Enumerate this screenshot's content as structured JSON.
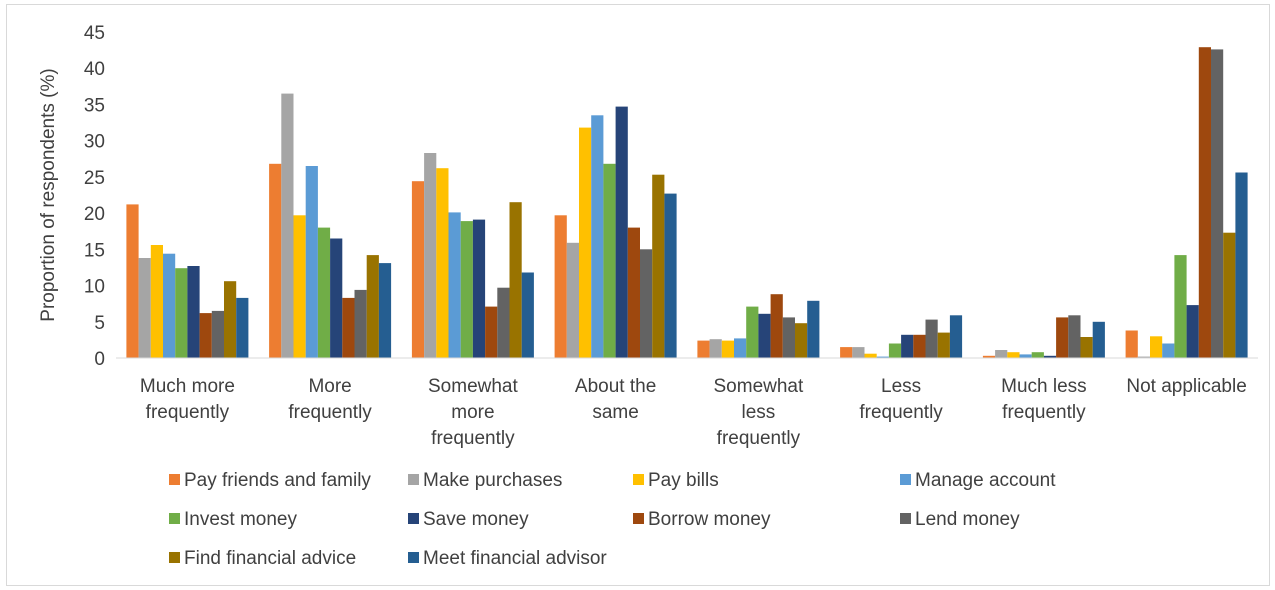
{
  "chart_data": {
    "type": "bar",
    "ylabel": "Proportion of respondents (%)",
    "xlabel": "",
    "ylim": [
      0,
      45
    ],
    "yticks": [
      0,
      5,
      10,
      15,
      20,
      25,
      30,
      35,
      40,
      45
    ],
    "grid": false,
    "legend_position": "bottom",
    "categories": [
      [
        "Much more",
        "frequently"
      ],
      [
        "More",
        "frequently"
      ],
      [
        "Somewhat",
        "more",
        "frequently"
      ],
      [
        "About the",
        "same"
      ],
      [
        "Somewhat",
        "less",
        "frequently"
      ],
      [
        "Less",
        "frequently"
      ],
      [
        "Much less",
        "frequently"
      ],
      [
        "Not applicable"
      ]
    ],
    "series": [
      {
        "name": "Pay friends and family",
        "color": "#ED7D31",
        "values": [
          21.2,
          26.8,
          24.4,
          19.7,
          2.4,
          1.5,
          0.3,
          3.8
        ]
      },
      {
        "name": "Make purchases",
        "color": "#A5A5A5",
        "values": [
          13.8,
          36.5,
          28.3,
          15.9,
          2.6,
          1.5,
          1.1,
          0.2
        ]
      },
      {
        "name": "Pay bills",
        "color": "#FFC000",
        "values": [
          15.6,
          19.7,
          26.2,
          31.8,
          2.4,
          0.6,
          0.8,
          3.0
        ]
      },
      {
        "name": "Manage account",
        "color": "#5B9BD5",
        "values": [
          14.4,
          26.5,
          20.1,
          33.5,
          2.7,
          0.2,
          0.5,
          2.0
        ]
      },
      {
        "name": "Invest money",
        "color": "#70AD47",
        "values": [
          12.4,
          18.0,
          18.9,
          26.8,
          7.1,
          2.0,
          0.8,
          14.2
        ]
      },
      {
        "name": "Save money",
        "color": "#264478",
        "values": [
          12.7,
          16.5,
          19.1,
          34.7,
          6.1,
          3.2,
          0.3,
          7.3
        ]
      },
      {
        "name": "Borrow money",
        "color": "#9E480E",
        "values": [
          6.2,
          8.3,
          7.1,
          18.0,
          8.8,
          3.2,
          5.6,
          42.9
        ]
      },
      {
        "name": "Lend money",
        "color": "#636363",
        "values": [
          6.5,
          9.4,
          9.7,
          15.0,
          5.6,
          5.3,
          5.9,
          42.6
        ]
      },
      {
        "name": "Find financial advice",
        "color": "#997300",
        "values": [
          10.6,
          14.2,
          21.5,
          25.3,
          4.8,
          3.5,
          2.9,
          17.3
        ]
      },
      {
        "name": "Meet financial advisor",
        "color": "#255E91",
        "values": [
          8.3,
          13.1,
          11.8,
          22.7,
          7.9,
          5.9,
          5.0,
          25.6
        ]
      }
    ]
  }
}
